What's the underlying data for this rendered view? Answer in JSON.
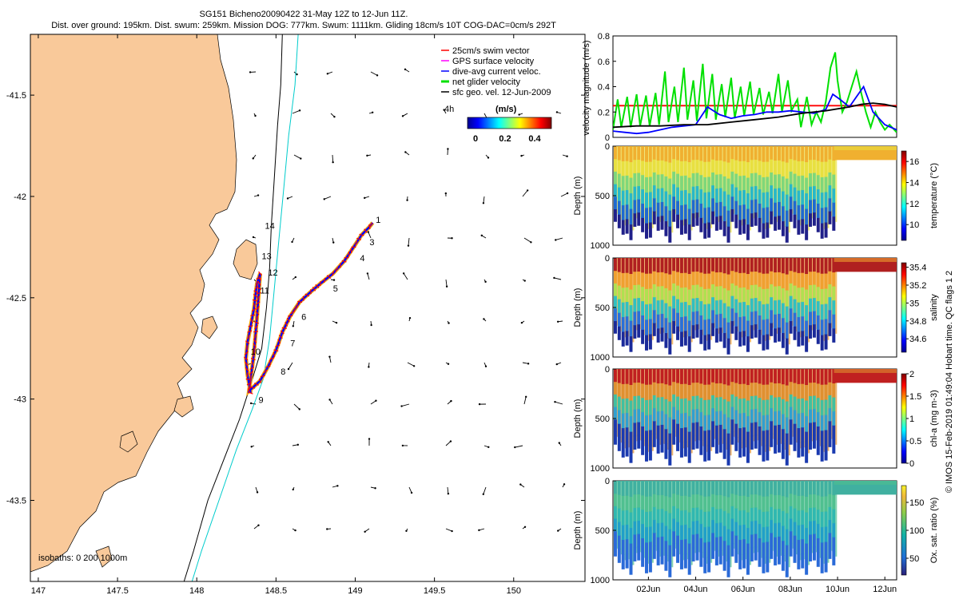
{
  "header": {
    "title": "SG151 Bicheno20090422 31-May 12Z to 12-Jun 11Z.",
    "subtitle": "Dist. over ground: 195km. Dist. swum: 259km. Mission DOG: 777km. Swum: 1111km. Gliding 18cm/s 10T COG-DAC=0cm/s 292T"
  },
  "copyright": "© IMOS 15-Feb-2019 01:49:04 Hobart time. QC flags 1 2",
  "colors": {
    "land": "#f9c99a",
    "swim": "#ff0000",
    "gps": "#ff00ff",
    "dac": "#0000ff",
    "net": "#00e000",
    "geo": "#000000",
    "isobath_200": "#000000",
    "isobath_1000": "#00cccc"
  },
  "chart_data": [
    {
      "type": "map",
      "id": "track-map",
      "xlim": [
        146.95,
        150.45
      ],
      "ylim": [
        -43.9,
        -41.2
      ],
      "xticks": [
        "147",
        "147.5",
        "148",
        "148.5",
        "149",
        "149.5",
        "150"
      ],
      "yticks": [
        "-41.5",
        "-42",
        "-42.5",
        "-43",
        "-43.5"
      ],
      "isobath_label": "isobaths: 0   200  1000m",
      "colorbar": {
        "label": "(m/s)",
        "ticks": [
          "0",
          "0.2",
          "0.4"
        ],
        "range": [
          0,
          0.55
        ]
      },
      "scale_label": "4h",
      "legend": [
        {
          "label": "25cm/s swim vector",
          "color": "#ff0000"
        },
        {
          "label": "GPS surface velocity",
          "color": "#ff00ff"
        },
        {
          "label": "dive-avg current veloc.",
          "color": "#0000ff"
        },
        {
          "label": "net glider velocity",
          "color": "#00e000"
        },
        {
          "label": "sfc geo. vel. 12-Jun-2009",
          "color": "#000000"
        }
      ],
      "track": [
        [
          148.34,
          -42.97
        ],
        [
          148.32,
          -42.88
        ],
        [
          148.31,
          -42.8
        ],
        [
          148.32,
          -42.72
        ],
        [
          148.34,
          -42.64
        ],
        [
          148.36,
          -42.56
        ],
        [
          148.37,
          -42.49
        ],
        [
          148.38,
          -42.43
        ],
        [
          148.4,
          -42.38
        ],
        [
          148.38,
          -42.6
        ],
        [
          148.36,
          -42.78
        ],
        [
          148.33,
          -42.96
        ],
        [
          148.4,
          -42.91
        ],
        [
          148.45,
          -42.84
        ],
        [
          148.5,
          -42.76
        ],
        [
          148.54,
          -42.67
        ],
        [
          148.59,
          -42.59
        ],
        [
          148.65,
          -42.52
        ],
        [
          148.72,
          -42.47
        ],
        [
          148.78,
          -42.43
        ],
        [
          148.86,
          -42.38
        ],
        [
          148.93,
          -42.32
        ],
        [
          148.99,
          -42.25
        ],
        [
          149.04,
          -42.19
        ],
        [
          149.09,
          -42.15
        ],
        [
          149.11,
          -42.13
        ]
      ],
      "track_labels": [
        {
          "t": "1",
          "lon": 149.13,
          "lat": -42.13
        },
        {
          "t": "3",
          "lon": 149.09,
          "lat": -42.24
        },
        {
          "t": "4",
          "lon": 149.03,
          "lat": -42.32
        },
        {
          "t": "5",
          "lon": 148.86,
          "lat": -42.47
        },
        {
          "t": "6",
          "lon": 148.66,
          "lat": -42.61
        },
        {
          "t": "7",
          "lon": 148.59,
          "lat": -42.74
        },
        {
          "t": "8",
          "lon": 148.53,
          "lat": -42.88
        },
        {
          "t": "9",
          "lon": 148.39,
          "lat": -43.02
        },
        {
          "t": "10",
          "lon": 148.34,
          "lat": -42.78
        },
        {
          "t": "11",
          "lon": 148.4,
          "lat": -42.48
        },
        {
          "t": "12",
          "lon": 148.45,
          "lat": -42.39
        },
        {
          "t": "13",
          "lon": 148.41,
          "lat": -42.31
        },
        {
          "t": "14",
          "lon": 148.43,
          "lat": -42.16
        }
      ],
      "isobath_200": [
        [
          148.54,
          -41.2
        ],
        [
          148.53,
          -41.45
        ],
        [
          148.51,
          -41.65
        ],
        [
          148.49,
          -41.9
        ],
        [
          148.47,
          -42.15
        ],
        [
          148.46,
          -42.35
        ],
        [
          148.44,
          -42.55
        ],
        [
          148.41,
          -42.75
        ],
        [
          148.34,
          -42.93
        ],
        [
          148.27,
          -43.1
        ],
        [
          148.17,
          -43.3
        ],
        [
          148.07,
          -43.5
        ],
        [
          147.98,
          -43.75
        ],
        [
          147.92,
          -43.9
        ]
      ],
      "isobath_1000": [
        [
          148.64,
          -41.2
        ],
        [
          148.62,
          -41.45
        ],
        [
          148.58,
          -41.7
        ],
        [
          148.55,
          -41.95
        ],
        [
          148.52,
          -42.2
        ],
        [
          148.49,
          -42.45
        ],
        [
          148.46,
          -42.7
        ],
        [
          148.42,
          -42.9
        ],
        [
          148.35,
          -43.05
        ],
        [
          148.25,
          -43.25
        ],
        [
          148.14,
          -43.5
        ],
        [
          148.03,
          -43.75
        ],
        [
          147.97,
          -43.9
        ]
      ]
    },
    {
      "type": "line",
      "id": "velocity-timeseries",
      "ylabel": "velocity magnitude (m/s)",
      "ylim": [
        0,
        0.8
      ],
      "yticks": [
        "0",
        "0.2",
        "0.4",
        "0.6",
        "0.8"
      ],
      "x_range_days": [
        0,
        12
      ],
      "series": [
        {
          "name": "swim vector",
          "color": "#ff0000",
          "x": [
            0,
            12
          ],
          "y": [
            0.25,
            0.25
          ]
        },
        {
          "name": "net glider velocity",
          "color": "#00e000",
          "x": [
            0,
            0.2,
            0.35,
            0.6,
            0.75,
            1,
            1.15,
            1.4,
            1.55,
            1.8,
            1.95,
            2.2,
            2.35,
            2.6,
            2.75,
            3,
            3.15,
            3.4,
            3.55,
            3.8,
            3.95,
            4.2,
            4.35,
            4.6,
            4.75,
            5,
            5.15,
            5.4,
            5.55,
            5.8,
            5.95,
            6.2,
            6.35,
            6.6,
            6.75,
            7,
            7.15,
            7.4,
            7.55,
            7.8,
            7.95,
            8.2,
            8.4,
            8.6,
            8.8,
            9.0,
            9.2,
            9.4,
            9.5,
            9.7,
            9.9,
            10.1,
            10.3,
            10.5,
            10.7,
            10.9,
            11.1,
            11.3,
            11.5,
            11.7,
            12
          ],
          "y": [
            0.06,
            0.3,
            0.08,
            0.32,
            0.08,
            0.34,
            0.09,
            0.33,
            0.09,
            0.35,
            0.1,
            0.52,
            0.12,
            0.4,
            0.12,
            0.55,
            0.14,
            0.45,
            0.13,
            0.58,
            0.15,
            0.5,
            0.14,
            0.42,
            0.16,
            0.47,
            0.15,
            0.4,
            0.17,
            0.44,
            0.18,
            0.39,
            0.18,
            0.36,
            0.19,
            0.5,
            0.2,
            0.45,
            0.21,
            0.3,
            0.08,
            0.32,
            0.1,
            0.2,
            0.12,
            0.28,
            0.55,
            0.67,
            0.45,
            0.2,
            0.28,
            0.4,
            0.52,
            0.35,
            0.2,
            0.08,
            0.2,
            0.12,
            0.06,
            0.1,
            0.04
          ]
        },
        {
          "name": "dive-avg current veloc.",
          "color": "#0000ff",
          "x": [
            0,
            0.5,
            1,
            1.5,
            2,
            2.5,
            3,
            3.5,
            4,
            4.5,
            5,
            5.5,
            6,
            6.5,
            7,
            7.5,
            8,
            8.5,
            9,
            9.3,
            9.6,
            10,
            10.3,
            10.6,
            11,
            11.5,
            12
          ],
          "y": [
            0.05,
            0.04,
            0.03,
            0.04,
            0.06,
            0.08,
            0.09,
            0.1,
            0.24,
            0.18,
            0.15,
            0.17,
            0.18,
            0.2,
            0.2,
            0.21,
            0.2,
            0.19,
            0.22,
            0.34,
            0.3,
            0.24,
            0.32,
            0.4,
            0.2,
            0.1,
            0.06
          ]
        },
        {
          "name": "sfc geo. vel.",
          "color": "#000000",
          "x": [
            0,
            1,
            2,
            3,
            4,
            5,
            6,
            7,
            8,
            9,
            10,
            10.5,
            11,
            11.5,
            12
          ],
          "y": [
            0.08,
            0.09,
            0.09,
            0.1,
            0.1,
            0.12,
            0.14,
            0.16,
            0.19,
            0.21,
            0.24,
            0.26,
            0.27,
            0.26,
            0.24
          ]
        }
      ]
    },
    {
      "type": "heatmap",
      "id": "temperature-section",
      "variable": "temperature (°C)",
      "ylabel": "Depth (m)",
      "ylim": [
        0,
        1000
      ],
      "yticks": [
        "0",
        "500",
        "1000"
      ],
      "colorbar_ticks": [
        "10",
        "12",
        "14",
        "16"
      ],
      "range": [
        8.5,
        17
      ]
    },
    {
      "type": "heatmap",
      "id": "salinity-section",
      "variable": "salinity",
      "ylabel": "Depth (m)",
      "ylim": [
        0,
        1000
      ],
      "yticks": [
        "0",
        "500",
        "1000"
      ],
      "colorbar_ticks": [
        "34.6",
        "34.8",
        "35",
        "35.2",
        "35.4"
      ],
      "range": [
        34.45,
        35.45
      ]
    },
    {
      "type": "heatmap",
      "id": "chla-section",
      "variable": "chl-a (mg m-3)",
      "ylabel": "Depth (m)",
      "ylim": [
        0,
        1000
      ],
      "yticks": [
        "0",
        "500",
        "1000"
      ],
      "colorbar_ticks": [
        "0",
        "0.5",
        "1",
        "1.5",
        "2"
      ],
      "range": [
        0,
        2
      ]
    },
    {
      "type": "heatmap",
      "id": "oxygen-section",
      "variable": "Ox. sat. ratio (%)",
      "ylabel": "Depth (m)",
      "ylim": [
        0,
        1000
      ],
      "yticks": [
        "0",
        "500",
        "1000"
      ],
      "colorbar_ticks": [
        "50",
        "100",
        "150"
      ],
      "range": [
        20,
        180
      ],
      "xticks": [
        "02Jun",
        "04Jun",
        "06Jun",
        "08Jun",
        "10Jun",
        "12Jun"
      ],
      "xtick_days": [
        1.5,
        3.5,
        5.5,
        7.5,
        9.5,
        11.5
      ]
    }
  ]
}
